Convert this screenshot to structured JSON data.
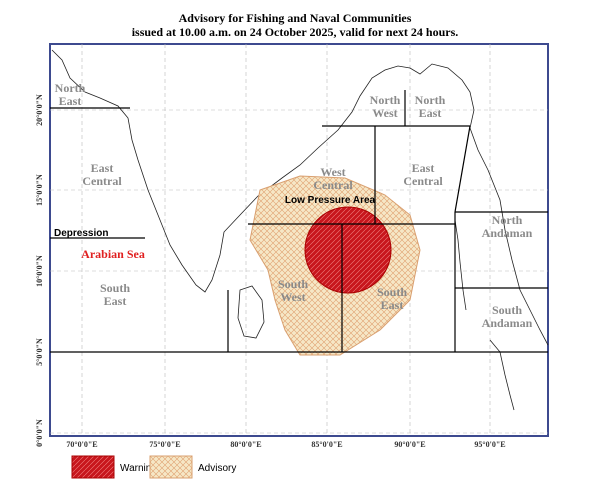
{
  "header": {
    "title": "Advisory for Fishing and Naval Communities",
    "subtitle": "issued at 10.00 a.m. on 24 October 2025, valid for next 24 hours."
  },
  "regions": [
    {
      "lines": [
        "North",
        "East"
      ]
    },
    {
      "lines": [
        "East",
        "Central"
      ]
    },
    {
      "lines": [
        "South",
        "East"
      ]
    },
    {
      "lines": [
        "North",
        "West"
      ]
    },
    {
      "lines": [
        "North",
        "East"
      ]
    },
    {
      "lines": [
        "West",
        "Central"
      ]
    },
    {
      "lines": [
        "East",
        "Central"
      ]
    },
    {
      "lines": [
        "North",
        "Andaman"
      ]
    },
    {
      "lines": [
        "South",
        "West"
      ]
    },
    {
      "lines": [
        "South",
        "East"
      ]
    },
    {
      "lines": [
        "South",
        "Andaman"
      ]
    }
  ],
  "annotations": {
    "sea": "Arabian Sea",
    "depression": "Depression",
    "low_pressure": "Low Pressure Area"
  },
  "latitude_labels": [
    "20°0'0\"N",
    "15°0'0\"N",
    "10°0'0\"N",
    "5°0'0\"N",
    "0°0'0\"N"
  ],
  "longitude_labels": [
    "70°0'0\"E",
    "75°0'0\"E",
    "80°0'0\"E",
    "85°0'0\"E",
    "90°0'0\"E",
    "95°0'0\"E"
  ],
  "legend": [
    "Warning",
    "Advisory"
  ]
}
